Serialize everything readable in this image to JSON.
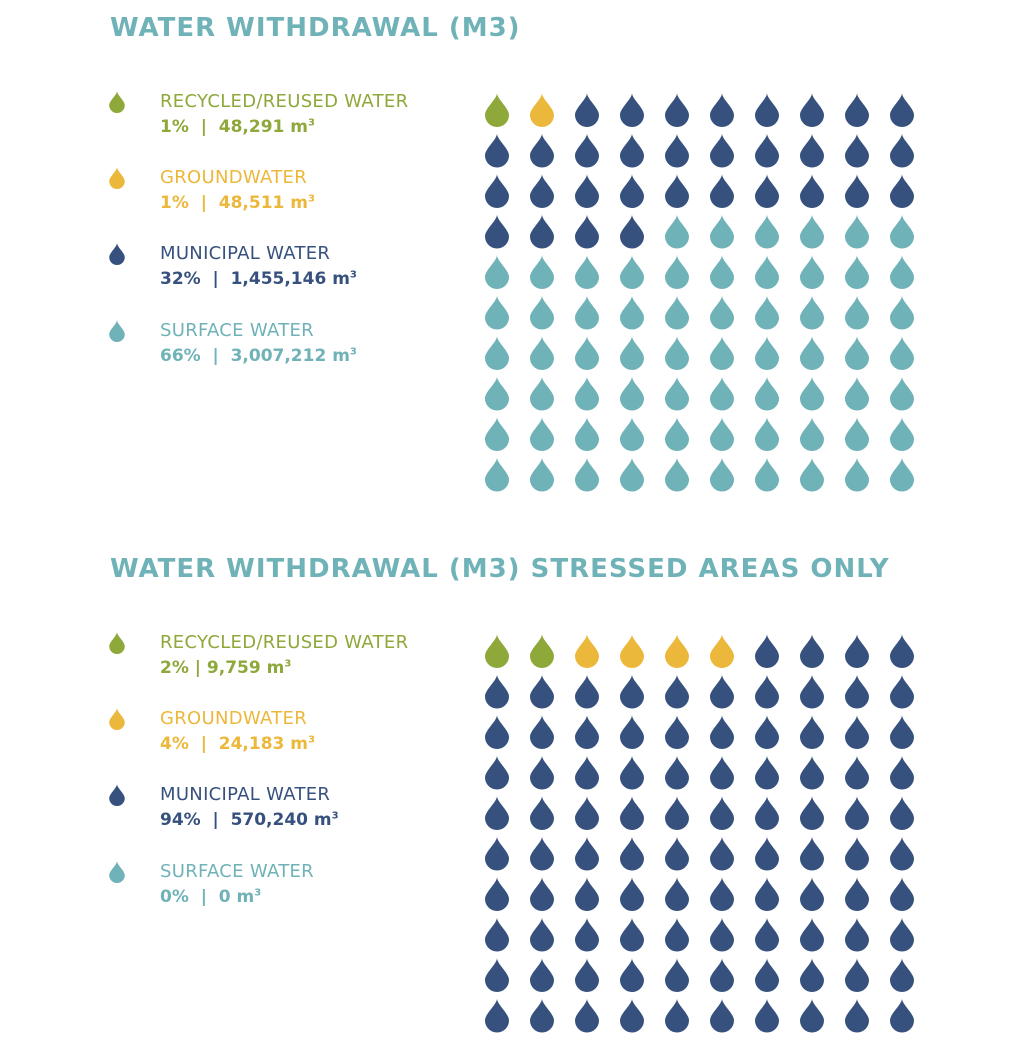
{
  "colors": {
    "recycled": "#8ea83a",
    "groundwater": "#ecb83b",
    "municipal": "#37517e",
    "surface": "#6fb2b7",
    "title": "#6fb2b7"
  },
  "chart_data": [
    {
      "type": "waffle",
      "title": "WATER WITHDRAWAL (M3)",
      "grid": {
        "rows": 10,
        "cols": 10,
        "icon": "water-drop-icon"
      },
      "categories": [
        {
          "key": "recycled",
          "label": "RECYCLED/REUSED WATER",
          "percent": 1,
          "percent_text": "1%",
          "value": 48291,
          "value_text": "48,291",
          "unit": "m",
          "unit_sup": "3",
          "icons": 1
        },
        {
          "key": "groundwater",
          "label": "GROUNDWATER",
          "percent": 1,
          "percent_text": "1%",
          "value": 48511,
          "value_text": "48,511",
          "unit": "m",
          "unit_sup": "3",
          "icons": 1
        },
        {
          "key": "municipal",
          "label": "MUNICIPAL WATER",
          "percent": 32,
          "percent_text": "32%",
          "value": 1455146,
          "value_text": "1,455,146",
          "unit": "m",
          "unit_sup": "3",
          "icons": 32
        },
        {
          "key": "surface",
          "label": "SURFACE WATER",
          "percent": 66,
          "percent_text": "66%",
          "value": 3007212,
          "value_text": "3,007,212",
          "unit": "m",
          "unit_sup": "3",
          "icons": 66
        }
      ]
    },
    {
      "type": "waffle",
      "title": "WATER WITHDRAWAL (M3)  STRESSED AREAS ONLY",
      "grid": {
        "rows": 10,
        "cols": 10,
        "icon": "water-drop-icon"
      },
      "categories": [
        {
          "key": "recycled",
          "label": "RECYCLED/REUSED WATER",
          "percent": 2,
          "percent_text": "2%",
          "value": 9759,
          "value_text": "9,759",
          "unit": "m",
          "unit_sup": "3",
          "icons": 2,
          "separator": " | "
        },
        {
          "key": "groundwater",
          "label": "GROUNDWATER",
          "percent": 4,
          "percent_text": "4%",
          "value": 24183,
          "value_text": "24,183",
          "unit": "m",
          "unit_sup": "3",
          "icons": 4
        },
        {
          "key": "municipal",
          "label": "MUNICIPAL WATER",
          "percent": 94,
          "percent_text": "94%",
          "value": 570240,
          "value_text": "570,240",
          "unit": "m",
          "unit_sup": "3",
          "icons": 94
        },
        {
          "key": "surface",
          "label": "SURFACE WATER",
          "percent": 0,
          "percent_text": "0%",
          "value": 0,
          "value_text": "0",
          "unit": "m",
          "unit_sup": "3",
          "icons": 0
        }
      ]
    }
  ]
}
